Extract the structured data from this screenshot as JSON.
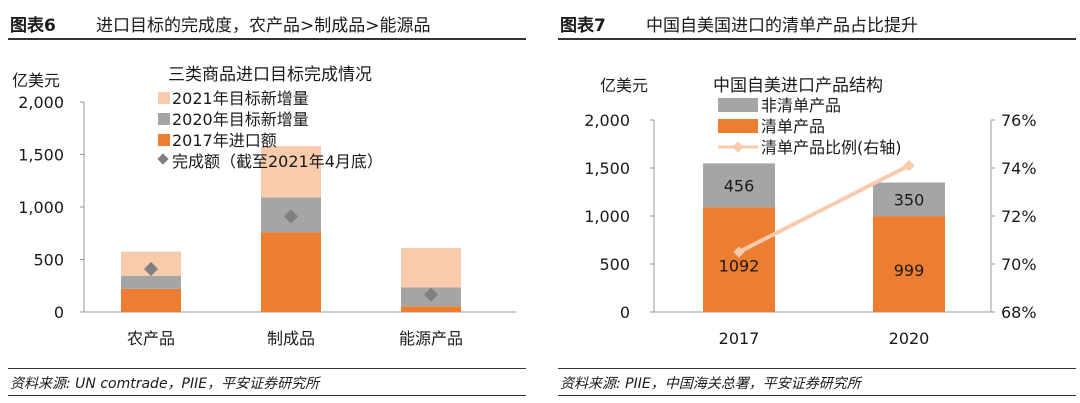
{
  "panels": [
    {
      "fig_label": "图表6",
      "fig_title": "进口目标的完成度，农产品>制成品>能源品",
      "source": "资料来源: UN comtrade，PIIE，平安证券研究所"
    },
    {
      "fig_label": "图表7",
      "fig_title": "中国自美国进口的清单产品占比提升",
      "source": "资料来源: PIIE，中国海关总署，平安证券研究所"
    }
  ],
  "chart_data": [
    {
      "type": "bar",
      "stacked": true,
      "title": "三类商品进口目标完成情况",
      "unit_label": "亿美元",
      "categories": [
        "农产品",
        "制成品",
        "能源产品"
      ],
      "ylim": [
        0,
        2000
      ],
      "yticks": [
        "2,000",
        "1,500",
        "1,000",
        "500",
        "0"
      ],
      "ytick_values": [
        2000,
        1500,
        1000,
        500,
        0
      ],
      "series": [
        {
          "name": "2017年进口额",
          "values": [
            220,
            760,
            55
          ],
          "color": "#ed7d31"
        },
        {
          "name": "2020年目标新增量",
          "values": [
            125,
            330,
            180
          ],
          "color": "#a5a5a5"
        },
        {
          "name": "2021年目标新增量",
          "values": [
            230,
            490,
            375
          ],
          "color": "#f8cbad"
        }
      ],
      "markers": {
        "name": "完成额（截至2021年4月底）",
        "values": [
          410,
          910,
          165
        ],
        "color": "#808080"
      },
      "legend_position": "top"
    },
    {
      "type": "bar",
      "stacked": true,
      "title": "中国自美进口产品结构",
      "unit_label": "亿美元",
      "categories": [
        "2017",
        "2020"
      ],
      "ylim": [
        0,
        2000
      ],
      "yticks": [
        "2,000",
        "1,500",
        "1,000",
        "500",
        "0"
      ],
      "ytick_values": [
        2000,
        1500,
        1000,
        500,
        0
      ],
      "y2lim": [
        68,
        76
      ],
      "y2ticks": [
        "76%",
        "74%",
        "72%",
        "70%",
        "68%"
      ],
      "y2tick_values": [
        76,
        74,
        72,
        70,
        68
      ],
      "series": [
        {
          "name": "清单产品",
          "values": [
            1092,
            999
          ],
          "labels": [
            "1092",
            "999"
          ],
          "color": "#ed7d31"
        },
        {
          "name": "非清单产品",
          "values": [
            456,
            350
          ],
          "labels": [
            "456",
            "350"
          ],
          "color": "#a5a5a5"
        }
      ],
      "line": {
        "name": "清单产品比例(右轴)",
        "values": [
          70.5,
          74.1
        ],
        "color": "#f8cbad"
      },
      "legend_position": "top"
    }
  ]
}
